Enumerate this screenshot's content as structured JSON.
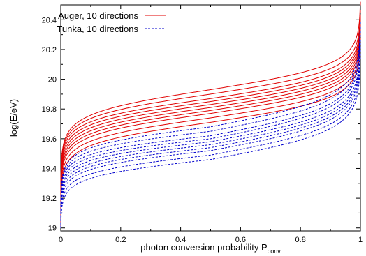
{
  "chart_data": {
    "type": "line",
    "title": "",
    "xlabel": "photon conversion probability P",
    "xlabel_subscript": "conv",
    "ylabel": "log(E/eV)",
    "xlim": [
      0,
      1
    ],
    "ylim": [
      18.98,
      20.5
    ],
    "x_ticks": [
      0,
      0.2,
      0.4,
      0.6,
      0.8,
      1
    ],
    "x_tick_labels": [
      "0",
      "0.2",
      "0.4",
      "0.6",
      "0.8",
      "1"
    ],
    "y_ticks": [
      19,
      19.2,
      19.4,
      19.6,
      19.8,
      20,
      20.2,
      20.4
    ],
    "y_tick_labels": [
      "19",
      "19.2",
      "19.4",
      "19.6",
      "19.8",
      "20",
      "20.2",
      "20.4"
    ],
    "grid": false,
    "legend_position": "top-left",
    "colors": {
      "auger": "#e00000",
      "tunka": "#0000cc"
    },
    "series": [
      {
        "name": "Auger, 10 directions",
        "style": "solid",
        "curves": [
          {
            "y_at_0_05": 19.7,
            "y_at_0_5": 19.93,
            "y_at_0_95": 20.17
          },
          {
            "y_at_0_05": 19.68,
            "y_at_0_5": 19.9,
            "y_at_0_95": 20.13
          },
          {
            "y_at_0_05": 19.66,
            "y_at_0_5": 19.87,
            "y_at_0_95": 20.1
          },
          {
            "y_at_0_05": 19.64,
            "y_at_0_5": 19.85,
            "y_at_0_95": 20.08
          },
          {
            "y_at_0_05": 19.62,
            "y_at_0_5": 19.83,
            "y_at_0_95": 20.06
          },
          {
            "y_at_0_05": 19.6,
            "y_at_0_5": 19.81,
            "y_at_0_95": 20.04
          },
          {
            "y_at_0_05": 19.58,
            "y_at_0_5": 19.79,
            "y_at_0_95": 20.02
          },
          {
            "y_at_0_05": 19.56,
            "y_at_0_5": 19.77,
            "y_at_0_95": 20.0
          },
          {
            "y_at_0_05": 19.53,
            "y_at_0_5": 19.74,
            "y_at_0_95": 19.97
          },
          {
            "y_at_0_05": 19.5,
            "y_at_0_5": 19.71,
            "y_at_0_95": 19.94
          }
        ]
      },
      {
        "name": "Tunka, 10 directions",
        "style": "dashed",
        "curves": [
          {
            "y_at_0_05": 19.49,
            "y_at_0_5": 19.68,
            "y_at_0_95": 19.97
          },
          {
            "y_at_0_05": 19.47,
            "y_at_0_5": 19.65,
            "y_at_0_95": 19.94
          },
          {
            "y_at_0_05": 19.45,
            "y_at_0_5": 19.62,
            "y_at_0_95": 19.91
          },
          {
            "y_at_0_05": 19.43,
            "y_at_0_5": 19.6,
            "y_at_0_95": 19.89
          },
          {
            "y_at_0_05": 19.41,
            "y_at_0_5": 19.58,
            "y_at_0_95": 19.86
          },
          {
            "y_at_0_05": 19.39,
            "y_at_0_5": 19.56,
            "y_at_0_95": 19.84
          },
          {
            "y_at_0_05": 19.37,
            "y_at_0_5": 19.54,
            "y_at_0_95": 19.82
          },
          {
            "y_at_0_05": 19.35,
            "y_at_0_5": 19.52,
            "y_at_0_95": 19.8
          },
          {
            "y_at_0_05": 19.32,
            "y_at_0_5": 19.49,
            "y_at_0_95": 19.77
          },
          {
            "y_at_0_05": 19.29,
            "y_at_0_5": 19.46,
            "y_at_0_95": 19.74
          }
        ]
      }
    ]
  }
}
